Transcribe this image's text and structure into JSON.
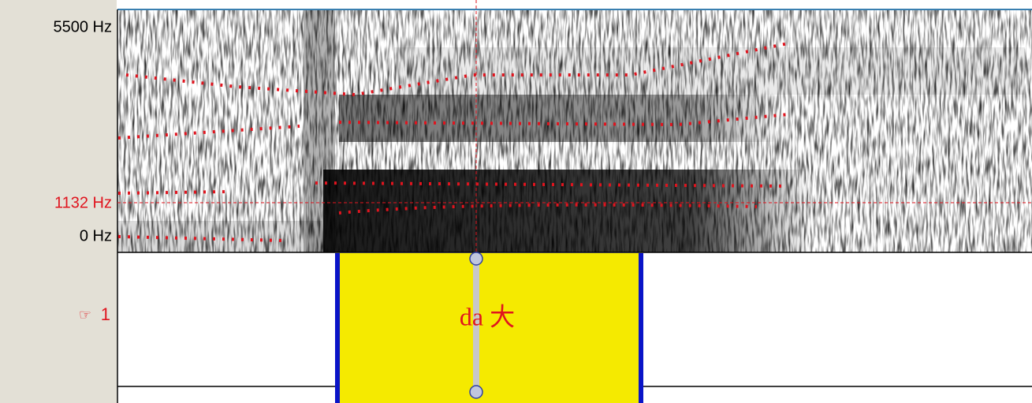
{
  "spectrogram": {
    "y_max_label": "5500 Hz",
    "cursor_label": "1132 Hz",
    "y_min_label": "0 Hz"
  },
  "tier": {
    "pointer": "☞",
    "name": "1",
    "interval_text": "da 大"
  }
}
